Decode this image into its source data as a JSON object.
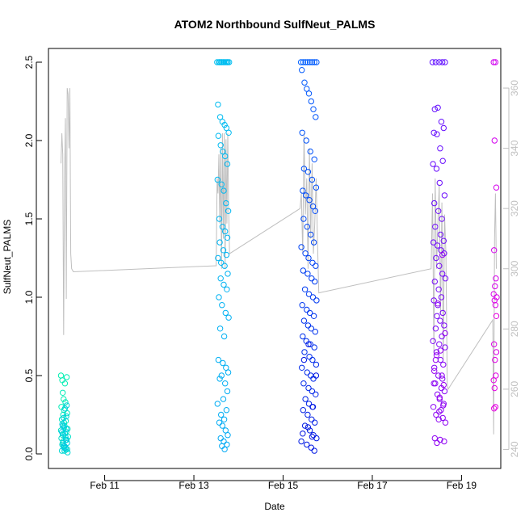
{
  "chart_data": {
    "type": "scatter",
    "title": "ATOM2 Northbound SulfNeut_PALMS",
    "xlabel": "Date",
    "ylabel": "SulfNeut_PALMS",
    "x_unit": "day of February (date axis)",
    "xlim": [
      9.74,
      19.88
    ],
    "ylim": [
      0.0,
      2.5
    ],
    "x_ticks": [
      {
        "value": 11,
        "label": "Feb 11"
      },
      {
        "value": 13,
        "label": "Feb 13"
      },
      {
        "value": 15,
        "label": "Feb 15"
      },
      {
        "value": 17,
        "label": "Feb 17"
      },
      {
        "value": 19,
        "label": "Feb 19"
      }
    ],
    "y_ticks": [
      {
        "value": 0.0,
        "label": "0.0"
      },
      {
        "value": 0.5,
        "label": "0.5"
      },
      {
        "value": 1.0,
        "label": "1.0"
      },
      {
        "value": 1.5,
        "label": "1.5"
      },
      {
        "value": 2.0,
        "label": "2.0"
      },
      {
        "value": 2.5,
        "label": "2.5"
      }
    ],
    "secondary_axis": {
      "side": "right",
      "color": "#bfbfbf",
      "ylim": [
        238.5,
        368.6
      ],
      "ticks": [
        {
          "value": 240,
          "label": "240"
        },
        {
          "value": 260,
          "label": "260"
        },
        {
          "value": 280,
          "label": "280"
        },
        {
          "value": 300,
          "label": "300"
        },
        {
          "value": 320,
          "label": "320"
        },
        {
          "value": 340,
          "label": "340"
        },
        {
          "value": 360,
          "label": "360"
        }
      ]
    },
    "grid": false,
    "legend": "none",
    "series": [
      {
        "marker": "open-circle",
        "color": "#00f0b0",
        "color_end": "#00c8e8",
        "x": [
          10.02,
          10.05,
          10.08,
          10.11,
          10.15,
          10.03,
          10.06,
          10.09,
          10.12,
          10.16,
          10.04,
          10.07,
          10.1,
          10.13,
          10.17,
          10.02,
          10.06,
          10.09,
          10.14,
          10.18,
          10.03,
          10.07,
          10.11,
          10.15,
          10.05,
          10.08,
          10.12,
          10.16,
          10.04,
          10.1,
          10.13,
          10.17,
          10.06,
          10.09,
          10.14,
          10.05,
          10.11,
          10.15,
          10.08,
          10.12,
          10.07,
          10.13,
          10.16,
          10.1,
          10.04,
          10.14,
          10.06,
          10.09
        ],
        "y": [
          0.5,
          0.47,
          0.35,
          0.45,
          0.49,
          0.3,
          0.39,
          0.28,
          0.33,
          0.26,
          0.22,
          0.25,
          0.18,
          0.21,
          0.16,
          0.15,
          0.12,
          0.2,
          0.14,
          0.11,
          0.1,
          0.08,
          0.13,
          0.09,
          0.06,
          0.05,
          0.04,
          0.03,
          0.02,
          0.02,
          0.03,
          0.01,
          0.07,
          0.17,
          0.24,
          0.19,
          0.29,
          0.31,
          0.23,
          0.11,
          0.13,
          0.09,
          0.07,
          0.05,
          0.14,
          0.16,
          0.18,
          0.04
        ]
      },
      {
        "marker": "open-circle",
        "color": "#00c0f0",
        "color_end": "#00a8f4",
        "x": [
          13.52,
          13.58,
          13.63,
          13.68,
          13.74,
          13.79,
          13.56,
          13.61,
          13.66,
          13.71,
          13.76,
          13.54,
          13.59,
          13.64,
          13.69,
          13.73,
          13.78,
          13.55,
          13.6,
          13.65,
          13.7,
          13.75,
          13.53,
          13.62,
          13.67,
          13.72,
          13.77,
          13.57,
          13.64,
          13.7,
          13.75,
          13.58,
          13.66,
          13.73,
          13.54,
          13.61,
          13.69,
          13.76,
          13.6,
          13.67,
          13.74,
          13.56,
          13.63,
          13.71,
          13.78,
          13.59,
          13.68,
          13.55,
          13.65,
          13.72,
          13.77,
          13.62,
          13.58,
          13.7,
          13.75,
          13.66,
          13.53,
          13.73,
          13.61,
          13.68,
          13.57,
          13.64,
          13.71,
          13.76,
          13.6,
          13.67,
          13.74,
          13.63,
          13.69
        ],
        "y": [
          2.5,
          2.5,
          2.5,
          2.5,
          2.5,
          2.5,
          2.5,
          2.5,
          2.5,
          2.5,
          2.5,
          2.23,
          2.15,
          2.12,
          2.1,
          2.08,
          2.05,
          2.03,
          1.97,
          1.93,
          1.9,
          1.85,
          1.75,
          1.72,
          1.68,
          1.6,
          1.55,
          1.5,
          1.45,
          1.42,
          1.38,
          1.35,
          1.3,
          1.27,
          1.25,
          1.22,
          1.2,
          1.15,
          1.12,
          1.08,
          1.05,
          1.0,
          0.95,
          0.9,
          0.87,
          0.8,
          0.75,
          0.6,
          0.58,
          0.55,
          0.52,
          0.5,
          0.48,
          0.45,
          0.4,
          0.35,
          0.32,
          0.28,
          0.25,
          0.22,
          0.2,
          0.18,
          0.15,
          0.12,
          0.1,
          0.08,
          0.06,
          0.05,
          0.03
        ]
      },
      {
        "marker": "open-circle",
        "color": "#0060ff",
        "color_end": "#0010e0",
        "x": [
          15.4,
          15.45,
          15.5,
          15.55,
          15.6,
          15.65,
          15.7,
          15.75,
          15.42,
          15.48,
          15.53,
          15.58,
          15.63,
          15.68,
          15.73,
          15.43,
          15.52,
          15.61,
          15.7,
          15.47,
          15.56,
          15.65,
          15.74,
          15.44,
          15.51,
          15.59,
          15.67,
          15.72,
          15.46,
          15.54,
          15.62,
          15.69,
          15.41,
          15.5,
          15.57,
          15.66,
          15.73,
          15.45,
          15.55,
          15.64,
          15.71,
          15.49,
          15.58,
          15.67,
          15.75,
          15.43,
          15.53,
          15.6,
          15.69,
          15.47,
          15.56,
          15.63,
          15.72,
          15.44,
          15.52,
          15.61,
          15.7,
          15.48,
          15.59,
          15.66,
          15.74,
          15.42,
          15.54,
          15.62,
          15.68,
          15.46,
          15.57,
          15.65,
          15.73,
          15.5,
          15.58,
          15.67,
          15.45,
          15.55,
          15.64,
          15.71,
          15.49,
          15.6,
          15.68,
          15.75,
          15.41,
          15.53,
          15.63,
          15.7,
          15.47,
          15.57,
          15.66,
          15.74,
          15.44,
          15.56,
          15.65
        ],
        "y": [
          2.5,
          2.5,
          2.5,
          2.5,
          2.5,
          2.5,
          2.5,
          2.5,
          2.45,
          2.37,
          2.33,
          2.3,
          2.25,
          2.2,
          2.15,
          2.05,
          2.0,
          1.93,
          1.88,
          1.82,
          1.8,
          1.75,
          1.7,
          1.68,
          1.65,
          1.62,
          1.58,
          1.55,
          1.5,
          1.45,
          1.4,
          1.35,
          1.32,
          1.28,
          1.25,
          1.22,
          1.2,
          1.17,
          1.15,
          1.12,
          1.1,
          1.05,
          1.02,
          1.0,
          0.98,
          0.95,
          0.92,
          0.9,
          0.88,
          0.85,
          0.82,
          0.8,
          0.78,
          0.75,
          0.72,
          0.7,
          0.68,
          0.65,
          0.62,
          0.6,
          0.57,
          0.55,
          0.52,
          0.5,
          0.48,
          0.45,
          0.42,
          0.4,
          0.38,
          0.35,
          0.32,
          0.3,
          0.28,
          0.25,
          0.22,
          0.2,
          0.18,
          0.15,
          0.12,
          0.1,
          0.08,
          0.06,
          0.04,
          0.02,
          0.6,
          0.7,
          0.3,
          0.5,
          0.13,
          0.17,
          0.11
        ]
      },
      {
        "marker": "open-circle",
        "color": "#6010ff",
        "color_end": "#9a00f0",
        "x": [
          18.35,
          18.42,
          18.5,
          18.57,
          18.63,
          18.4,
          18.47,
          18.55,
          18.6,
          18.38,
          18.45,
          18.52,
          18.58,
          18.36,
          18.44,
          18.51,
          18.62,
          18.39,
          18.48,
          18.56,
          18.41,
          18.53,
          18.6,
          18.37,
          18.46,
          18.54,
          18.61,
          18.43,
          18.5,
          18.57,
          18.64,
          18.4,
          18.49,
          18.55,
          18.38,
          18.47,
          18.58,
          18.45,
          18.52,
          18.61,
          18.42,
          18.56,
          18.36,
          18.5,
          18.63,
          18.44,
          18.53,
          18.59,
          18.39,
          18.48,
          18.57,
          18.41,
          18.55,
          18.62,
          18.46,
          18.51,
          18.6,
          18.37,
          18.54,
          18.43,
          18.58,
          18.49,
          18.64,
          18.4,
          18.52,
          18.61,
          18.45,
          18.56,
          18.38,
          18.5,
          18.59,
          18.42,
          18.53,
          18.63,
          18.47,
          18.57,
          18.44,
          18.6,
          18.39,
          18.51
        ],
        "y": [
          2.5,
          2.5,
          2.5,
          2.5,
          2.5,
          2.2,
          2.21,
          2.12,
          2.08,
          2.05,
          2.04,
          1.95,
          1.87,
          1.85,
          1.82,
          1.73,
          1.65,
          1.6,
          1.55,
          1.5,
          1.45,
          1.4,
          1.36,
          1.35,
          1.33,
          1.3,
          1.28,
          1.25,
          1.2,
          1.15,
          1.12,
          1.1,
          1.05,
          1.0,
          0.98,
          0.95,
          0.9,
          0.88,
          0.85,
          0.82,
          0.8,
          0.75,
          0.72,
          0.7,
          0.68,
          0.65,
          0.6,
          0.57,
          0.55,
          0.5,
          0.48,
          0.45,
          0.42,
          0.4,
          0.38,
          0.35,
          0.32,
          0.3,
          0.28,
          0.25,
          0.23,
          0.22,
          0.2,
          0.1,
          0.09,
          0.08,
          0.07,
          0.5,
          0.45,
          0.27,
          0.31,
          0.6,
          0.66,
          0.77,
          0.96,
          1.27,
          0.63,
          0.44,
          0.53,
          0.36
        ]
      },
      {
        "marker": "open-circle",
        "color": "#d000f0",
        "color_end": "#e800e0",
        "x": [
          19.72,
          19.76,
          19.74,
          19.78,
          19.73,
          19.77,
          19.75,
          19.72,
          19.79,
          19.74,
          19.76,
          19.73,
          19.78,
          19.75,
          19.77,
          19.72,
          19.74,
          19.76,
          19.73,
          19.78
        ],
        "y": [
          2.5,
          2.5,
          2.0,
          1.7,
          1.3,
          1.12,
          1.07,
          1.02,
          1.0,
          0.98,
          0.95,
          0.7,
          0.65,
          0.6,
          0.5,
          0.47,
          0.42,
          0.3,
          0.29,
          0.88
        ]
      }
    ],
    "secondary_line": {
      "color": "#bfbfbf",
      "x": [
        10.02,
        10.04,
        10.06,
        10.08,
        10.1,
        10.12,
        10.14,
        10.16,
        10.18,
        10.2,
        10.22,
        10.24,
        10.26,
        10.3,
        13.5,
        13.52,
        13.54,
        13.56,
        13.58,
        13.6,
        13.62,
        13.64,
        13.66,
        13.68,
        13.7,
        13.72,
        13.74,
        13.76,
        13.78,
        13.8,
        15.38,
        15.41,
        15.44,
        15.47,
        15.5,
        15.53,
        15.56,
        15.59,
        15.62,
        15.65,
        15.68,
        15.71,
        15.74,
        15.77,
        15.8,
        18.32,
        18.35,
        18.38,
        18.41,
        18.44,
        18.47,
        18.5,
        18.53,
        18.56,
        18.59,
        18.62,
        18.65,
        18.68,
        18.7,
        19.7,
        19.72,
        19.74,
        19.76,
        19.78
      ],
      "y": [
        335,
        345,
        338,
        278,
        330,
        350,
        290,
        360,
        358,
        340,
        360,
        305,
        300,
        299,
        301,
        330,
        325,
        338,
        315,
        340,
        300,
        345,
        310,
        345,
        300,
        343,
        315,
        345,
        320,
        305,
        320,
        325,
        305,
        345,
        318,
        330,
        300,
        340,
        310,
        335,
        305,
        315,
        330,
        310,
        292,
        300,
        325,
        272,
        330,
        300,
        315,
        328,
        285,
        322,
        270,
        318,
        305,
        262,
        260,
        283,
        245,
        310,
        325,
        300
      ]
    }
  }
}
